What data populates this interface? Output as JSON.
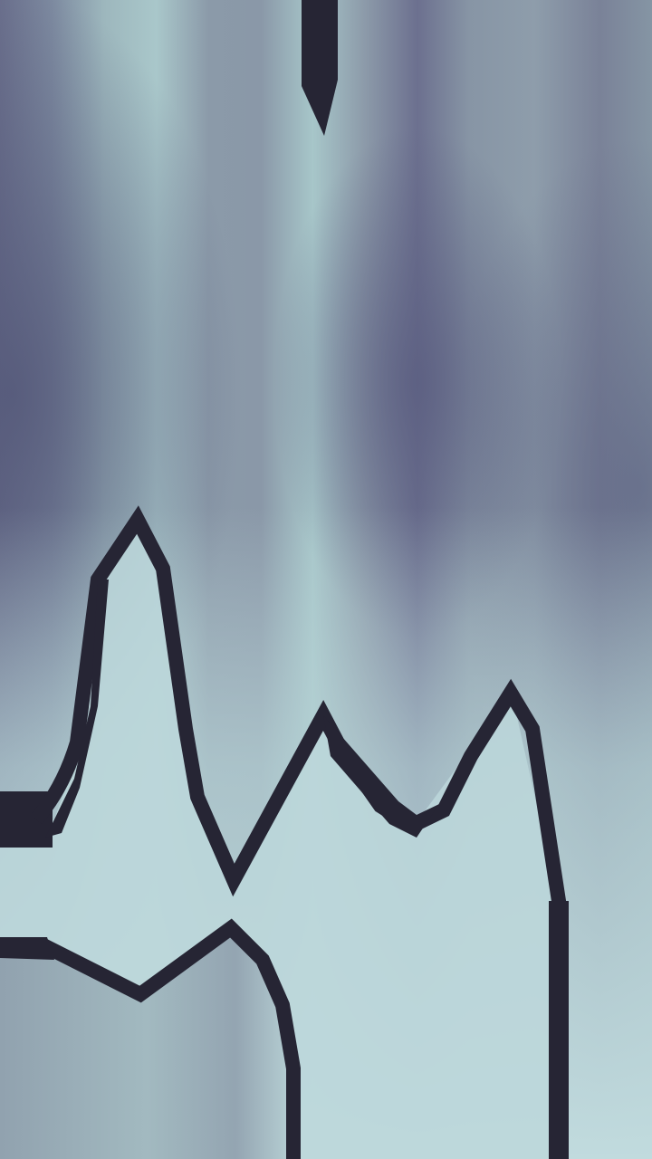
{
  "scene": {
    "palette": {
      "outline": "#262534",
      "sky_dark": "#5f6582",
      "sky_mid": "#8d9dab",
      "glow_light": "#b4d2d4",
      "ground_light": "#c1dbde"
    },
    "elements": [
      {
        "name": "ceiling-stalactite",
        "kind": "hazard"
      },
      {
        "name": "terrain-peaks-outline",
        "kind": "terrain"
      },
      {
        "name": "terrain-left-ledge",
        "kind": "terrain"
      },
      {
        "name": "lower-ground-outline",
        "kind": "terrain"
      },
      {
        "name": "right-wall-outline",
        "kind": "terrain"
      }
    ]
  }
}
